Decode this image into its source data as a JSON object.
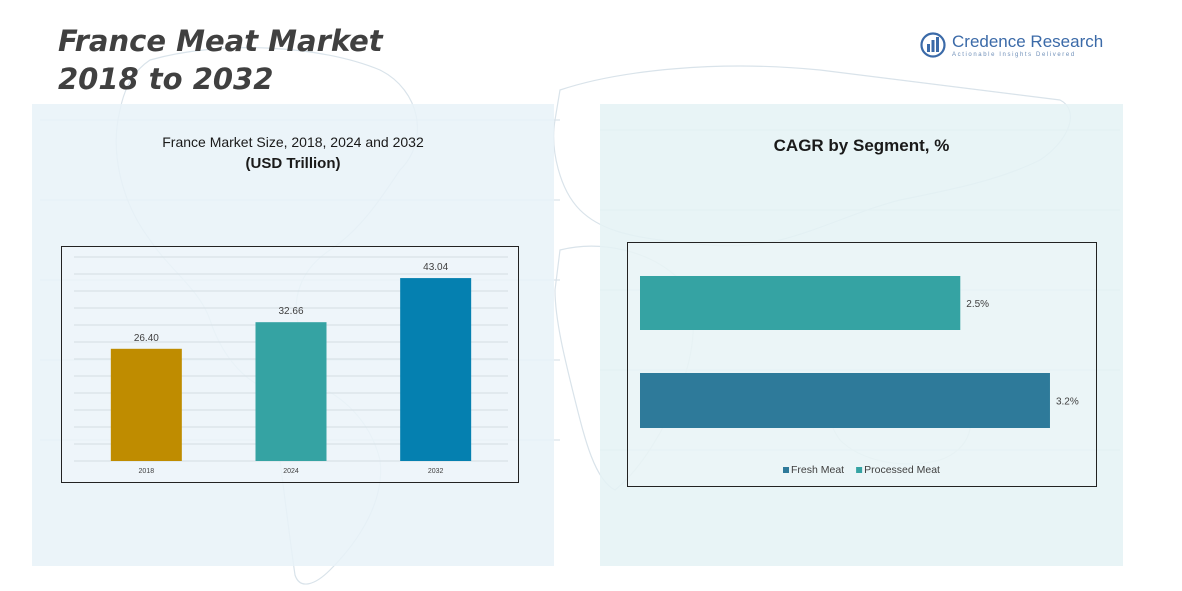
{
  "header": {
    "title_line1": "France Meat Market",
    "title_line2": "2018 to 2032"
  },
  "logo": {
    "name": "Credence Research",
    "tagline": "Actionable Insights Delivered",
    "icon": "bar-chart-circle-icon",
    "color": "#3b6aa8"
  },
  "left_panel": {
    "title": "France Market Size, 2018, 2024 and 2032",
    "subtitle": "(USD Trillion)"
  },
  "right_panel": {
    "title": "CAGR by Segment, %"
  },
  "chart_data": [
    {
      "type": "bar",
      "title": "France Market Size, 2018, 2024 and 2032",
      "subtitle": "(USD Trillion)",
      "categories": [
        "2018",
        "2024",
        "2032"
      ],
      "values": [
        26.4,
        32.66,
        43.04
      ],
      "value_labels": [
        "26.40",
        "32.66",
        "43.04"
      ],
      "colors": [
        "#bf8c00",
        "#35a3a3",
        "#0580b0"
      ],
      "ylim": [
        0,
        48
      ],
      "grid": true
    },
    {
      "type": "bar",
      "orientation": "horizontal",
      "title": "CAGR by Segment, %",
      "series": [
        {
          "name": "Fresh Meat",
          "value": 3.2,
          "label": "3.2%",
          "color": "#2e7a9a"
        },
        {
          "name": "Processed Meat",
          "value": 2.5,
          "label": "2.5%",
          "color": "#35a3a3"
        }
      ],
      "xlim": [
        0,
        3.45
      ],
      "legend": "bottom",
      "grid": false
    }
  ]
}
